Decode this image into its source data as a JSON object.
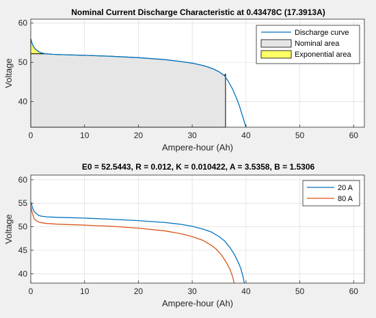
{
  "chart_data": [
    {
      "type": "area",
      "title": "Nominal Current Discharge Characteristic at 0.43478C (17.3913A)",
      "xlabel": "Ampere-hour (Ah)",
      "ylabel": "Voltage",
      "xlim": [
        0,
        62
      ],
      "ylim": [
        33.5,
        61
      ],
      "xticks": [
        "0",
        "10",
        "20",
        "30",
        "40",
        "50",
        "60"
      ],
      "yticks": [
        "40",
        "50",
        "60"
      ],
      "grid": true,
      "legend_position": "top-right",
      "legend": [
        "Discharge curve",
        "Nominal area",
        "Exponential area"
      ],
      "colors": {
        "curve": "#0072bd",
        "nominal_fill": "#e6e6e6",
        "exponential_fill": "#ffff66",
        "outline": "#000000"
      },
      "series": [
        {
          "name": "Discharge curve",
          "x": [
            0,
            0.3,
            0.6,
            1,
            1.5,
            2,
            2.5,
            3,
            4,
            6,
            10,
            15,
            20,
            25,
            28,
            30,
            32,
            33,
            34,
            35,
            36,
            36.7,
            37.5,
            38.2,
            38.8,
            39.3,
            39.7,
            40
          ],
          "y": [
            56,
            54.6,
            53.8,
            53.2,
            52.7,
            52.4,
            52.25,
            52.15,
            52.05,
            51.95,
            51.8,
            51.55,
            51.2,
            50.7,
            50.2,
            49.8,
            49.2,
            48.8,
            48.3,
            47.6,
            46.6,
            45.2,
            43.2,
            41,
            38.8,
            36.6,
            34.8,
            33.5
          ]
        }
      ],
      "nominal_area": {
        "x_end": 36.2,
        "y_top": 47.1
      },
      "exponential_area": {
        "x_end": 2.5,
        "y_top": 56
      }
    },
    {
      "type": "line",
      "title": "E0 = 52.5443, R = 0.012, K = 0.010422, A = 3.5358, B = 1.5306",
      "xlabel": "Ampere-hour (Ah)",
      "ylabel": "Voltage",
      "xlim": [
        0,
        62
      ],
      "ylim": [
        38,
        61
      ],
      "xticks": [
        "0",
        "10",
        "20",
        "30",
        "40",
        "50",
        "60"
      ],
      "yticks": [
        "40",
        "45",
        "50",
        "55",
        "60"
      ],
      "grid": true,
      "legend_position": "top-right",
      "series": [
        {
          "name": "20 A",
          "color": "#0072bd",
          "x": [
            0,
            0.3,
            0.6,
            1,
            1.5,
            2,
            3,
            5,
            10,
            15,
            20,
            25,
            28,
            30,
            32,
            33.5,
            35,
            36,
            37,
            37.8,
            38.5,
            39,
            39.4,
            39.7
          ],
          "y": [
            55.3,
            54.1,
            53.3,
            52.8,
            52.4,
            52.25,
            52.1,
            52.0,
            51.85,
            51.6,
            51.3,
            50.9,
            50.5,
            50.1,
            49.5,
            48.9,
            47.9,
            47.0,
            45.6,
            44.2,
            42.6,
            41.2,
            39.6,
            38
          ]
        },
        {
          "name": "80 A",
          "color": "#d95319",
          "x": [
            0,
            0.3,
            0.6,
            1,
            1.5,
            2,
            3,
            5,
            10,
            15,
            20,
            25,
            28,
            30,
            32,
            33.5,
            34.5,
            35.5,
            36.3,
            37,
            37.5,
            37.8
          ],
          "y": [
            54.3,
            52.8,
            51.8,
            51.3,
            51.0,
            50.85,
            50.7,
            50.55,
            50.35,
            50.1,
            49.7,
            49.1,
            48.5,
            47.9,
            47.1,
            46.1,
            45.2,
            43.9,
            42.5,
            41.0,
            39.4,
            38
          ]
        }
      ]
    }
  ]
}
